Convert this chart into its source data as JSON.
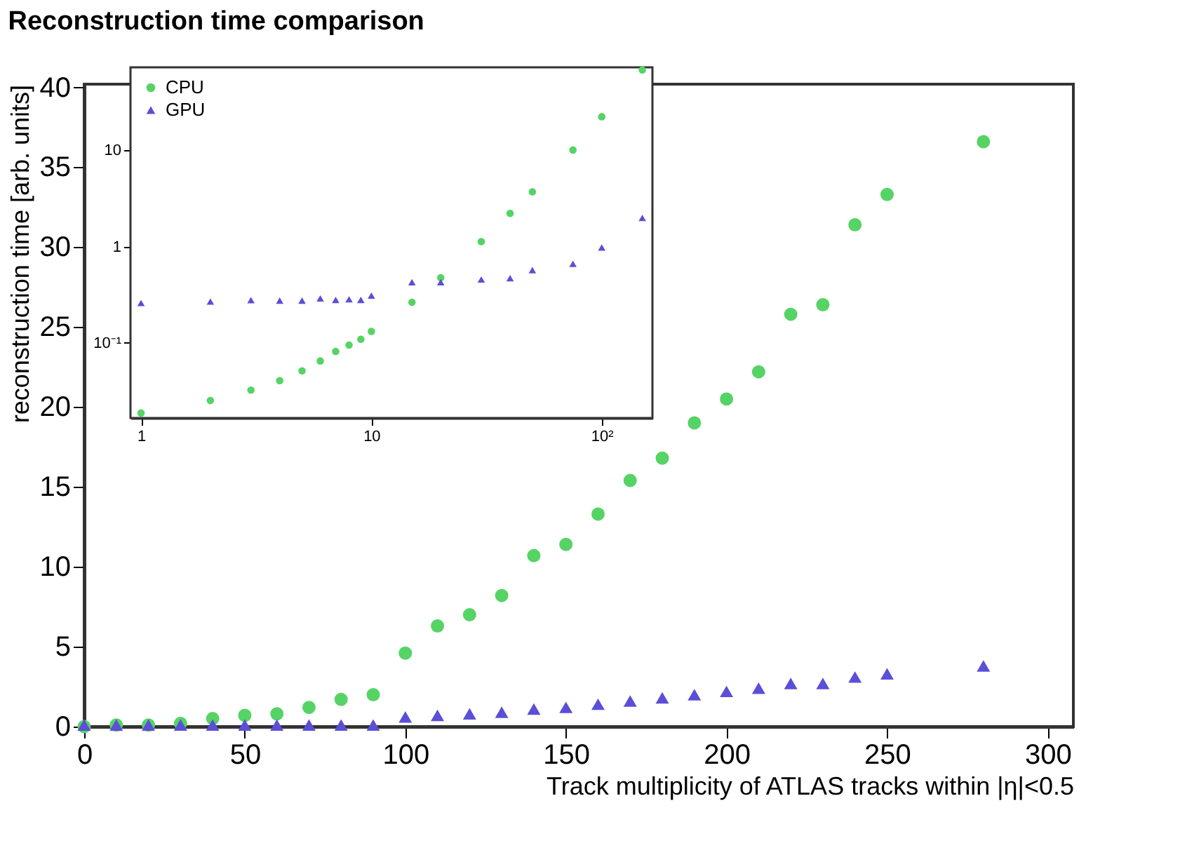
{
  "chart_data": [
    {
      "type": "scatter",
      "title": "Reconstruction time comparison",
      "xlabel": "Track multiplicity of ATLAS tracks within |η|<0.5",
      "ylabel": "reconstruction time [arb. units]",
      "x": [
        0,
        10,
        20,
        30,
        40,
        50,
        60,
        70,
        80,
        90,
        100,
        110,
        120,
        130,
        140,
        150,
        160,
        170,
        180,
        190,
        200,
        210,
        220,
        230,
        240,
        250,
        280
      ],
      "series": [
        {
          "color": "#55d465",
          "marker": "circle",
          "values": [
            0.0,
            0.1,
            0.1,
            0.2,
            0.5,
            0.7,
            0.8,
            1.2,
            1.7,
            2.0,
            4.6,
            6.3,
            7.0,
            8.2,
            10.7,
            11.4,
            13.3,
            15.4,
            16.8,
            19.0,
            20.5,
            22.2,
            25.8,
            26.4,
            31.4,
            33.3,
            36.6
          ]
        },
        {
          "color": "#5a4fd6",
          "marker": "triangle",
          "values": [
            0.1,
            0.1,
            0.1,
            0.1,
            0.1,
            0.1,
            0.1,
            0.1,
            0.1,
            0.1,
            0.6,
            0.7,
            0.8,
            0.9,
            1.1,
            1.2,
            1.4,
            1.6,
            1.8,
            2.0,
            2.2,
            2.4,
            2.7,
            2.7,
            3.1,
            3.3,
            3.8
          ]
        }
      ],
      "xlim": [
        0,
        308
      ],
      "ylim": [
        0,
        40.2
      ],
      "xticks": [
        0,
        50,
        100,
        150,
        200,
        250,
        300
      ],
      "yticks": [
        0,
        5,
        10,
        15,
        20,
        25,
        30,
        35,
        40
      ],
      "grid": false,
      "legend": false
    },
    {
      "type": "scatter",
      "log": "xy",
      "x": [
        1,
        2,
        3,
        4,
        5,
        6,
        7,
        8,
        9,
        10,
        15,
        20,
        30,
        40,
        50,
        75,
        100,
        150
      ],
      "series": [
        {
          "name": "CPU",
          "color": "#55d465",
          "marker": "circle",
          "values": [
            0.0187,
            0.0252,
            0.0323,
            0.0406,
            0.0513,
            0.065,
            0.0815,
            0.095,
            0.109,
            0.132,
            0.264,
            0.476,
            1.13,
            2.22,
            3.72,
            10.1,
            22.4,
            68.6
          ]
        },
        {
          "name": "GPU",
          "color": "#5a4fd6",
          "marker": "triangle",
          "values": [
            0.26,
            0.269,
            0.278,
            0.275,
            0.275,
            0.29,
            0.28,
            0.284,
            0.28,
            0.31,
            0.428,
            0.428,
            0.456,
            0.471,
            0.571,
            0.664,
            0.98,
            1.99
          ]
        }
      ],
      "xlim": [
        0.9,
        166
      ],
      "ylim": [
        0.0166,
        73
      ],
      "xticks": [
        1,
        10,
        {
          "value": 100,
          "label": "10²"
        }
      ],
      "yticks": [
        {
          "value": 0.1,
          "label": "10⁻¹"
        },
        1,
        10
      ],
      "grid": false,
      "legend": "top left"
    }
  ]
}
